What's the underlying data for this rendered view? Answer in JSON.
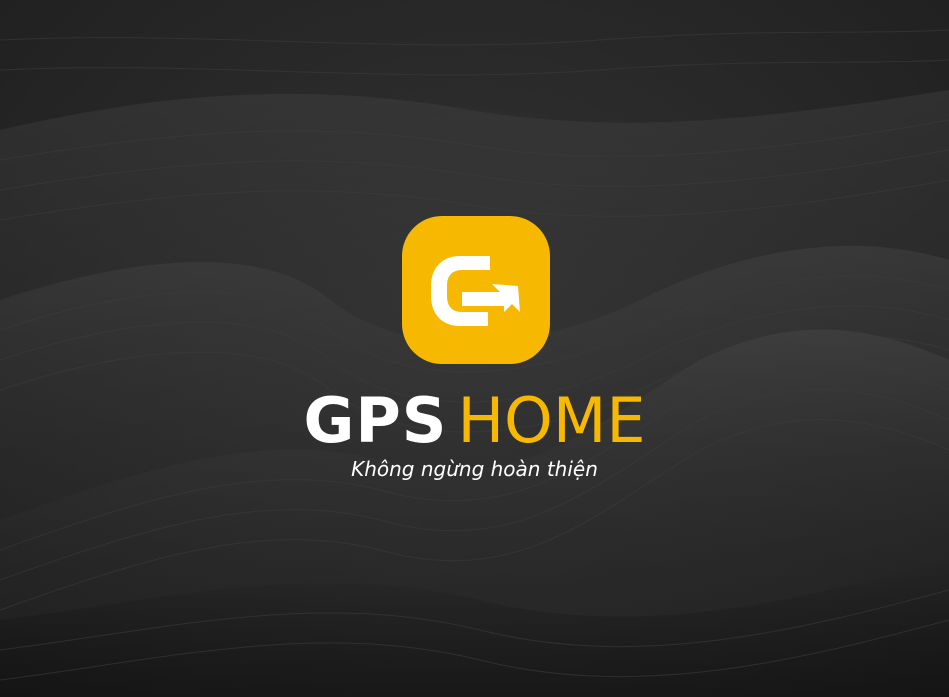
{
  "brand": {
    "name_part1": "GPS",
    "name_part2": "HOME",
    "tagline": "Không ngừng hoàn thiện",
    "logo_icon": "g-arrow-logo-icon"
  },
  "colors": {
    "accent": "#F6B800",
    "text_white": "#FFFFFF",
    "background": "#262626",
    "icon_mark": "#FFFFFF"
  }
}
